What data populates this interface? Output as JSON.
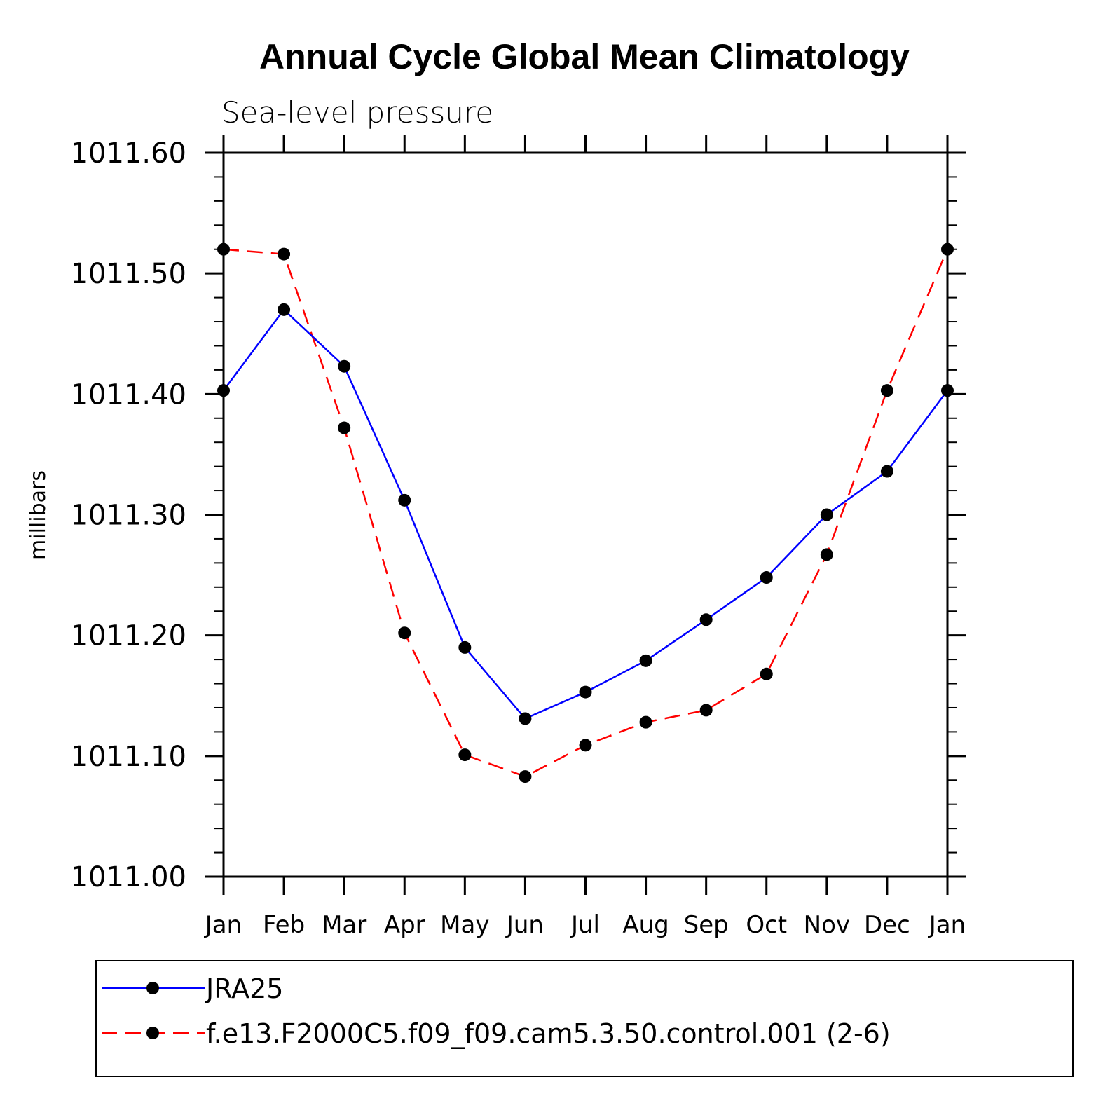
{
  "chart_data": {
    "type": "line",
    "title": "Annual Cycle Global Mean Climatology",
    "subtitle": "Sea-level pressure",
    "ylabel": "millibars",
    "xlabel": "",
    "ylim": [
      1011.0,
      1011.6
    ],
    "yticks": [
      "1011.00",
      "1011.10",
      "1011.20",
      "1011.30",
      "1011.40",
      "1011.50",
      "1011.60"
    ],
    "categories": [
      "Jan",
      "Feb",
      "Mar",
      "Apr",
      "May",
      "Jun",
      "Jul",
      "Aug",
      "Sep",
      "Oct",
      "Nov",
      "Dec",
      "Jan"
    ],
    "legend_position": "bottom",
    "series": [
      {
        "name": "JRA25",
        "color": "#0000ff",
        "dash": "solid",
        "values": [
          1011.403,
          1011.47,
          1011.423,
          1011.312,
          1011.19,
          1011.131,
          1011.153,
          1011.179,
          1011.213,
          1011.248,
          1011.3,
          1011.336,
          1011.403
        ]
      },
      {
        "name": "f.e13.F2000C5.f09_f09.cam5.3.50.control.001 (2-6)",
        "color": "#ff0000",
        "dash": "dashed",
        "values": [
          1011.52,
          1011.516,
          1011.372,
          1011.202,
          1011.101,
          1011.083,
          1011.109,
          1011.128,
          1011.138,
          1011.168,
          1011.267,
          1011.403,
          1011.52
        ]
      }
    ]
  }
}
